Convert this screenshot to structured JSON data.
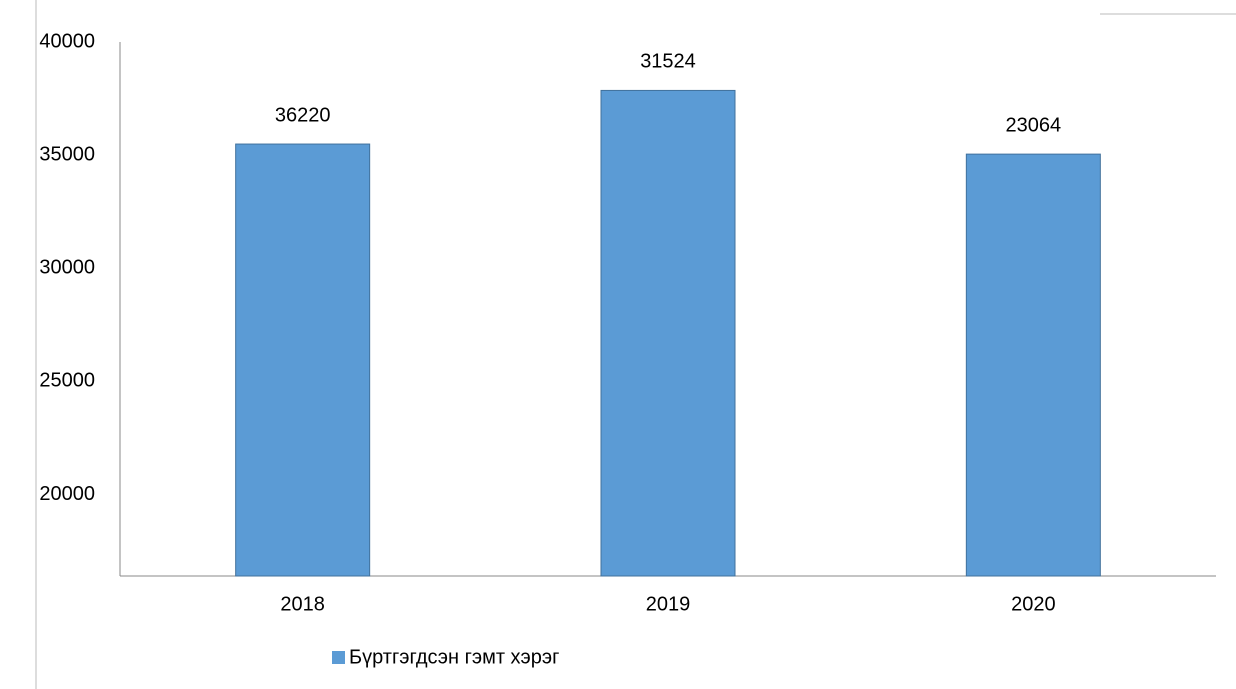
{
  "chart_data": {
    "type": "bar",
    "categories": [
      "2018",
      "2019",
      "2020"
    ],
    "series": [
      {
        "name": "Бүртгэгдсэн гэмт хэрэг",
        "color": "#5b9bd5",
        "values": [
          35490,
          37860,
          35045
        ]
      }
    ],
    "annotations": [
      "36220",
      "31524",
      "23064"
    ],
    "ylim": [
      16400,
      40000
    ],
    "yticks": [
      20000,
      25000,
      30000,
      35000,
      40000
    ],
    "grid": false,
    "legend": "bottom"
  }
}
